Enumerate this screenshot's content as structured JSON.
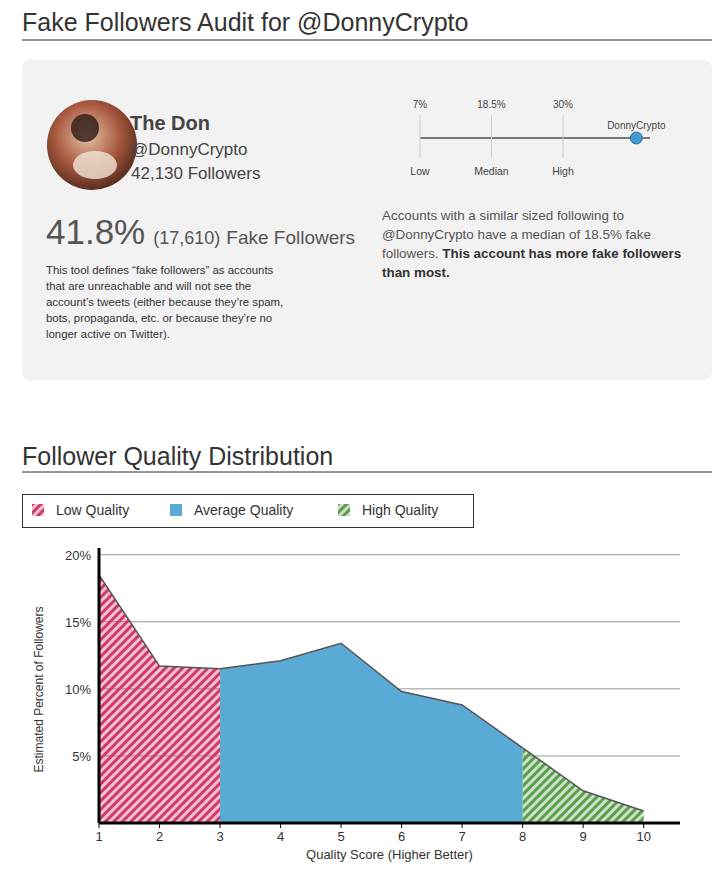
{
  "header": {
    "title": "Fake Followers Audit for @DonnyCrypto"
  },
  "profile": {
    "name": "The Don",
    "handle": "@DonnyCrypto",
    "followers": "42,130 Followers"
  },
  "fake": {
    "percent": "41.8%",
    "count": "(17,610)",
    "label": "Fake Followers",
    "definition": "This tool defines “fake followers” as accounts that are unreachable and will not see the account’s tweets (either because they’re spam, bots, propaganda, etc. or because they’re no longer active on Twitter)."
  },
  "gauge": {
    "range": [
      7,
      44
    ],
    "ticks": [
      {
        "value": 7,
        "label": "7%",
        "caption": "Low"
      },
      {
        "value": 18.5,
        "label": "18.5%",
        "caption": "Median"
      },
      {
        "value": 30,
        "label": "30%",
        "caption": "High"
      }
    ],
    "marker": {
      "label": "DonnyCrypto",
      "value": 41.8
    }
  },
  "comparison": {
    "text": "Accounts with a similar sized following to @DonnyCrypto have a median of 18.5% fake followers.",
    "emphasis": "This account has more fake followers than most."
  },
  "chart_data": {
    "type": "area",
    "title": "Follower Quality Distribution",
    "x_label": "Quality Score (Higher Better)",
    "y_label": "Estimated Percent of Followers",
    "x": [
      1,
      2,
      3,
      4,
      5,
      6,
      7,
      8,
      9,
      10
    ],
    "series": [
      {
        "name": "Low Quality",
        "color": "#d1386c",
        "values": [
          18.5,
          11.7,
          11.5,
          null,
          null,
          null,
          null,
          null,
          null,
          null
        ]
      },
      {
        "name": "Average Quality",
        "color": "#5aaad6",
        "values": [
          null,
          null,
          11.5,
          12.1,
          13.4,
          9.8,
          8.8,
          5.6,
          null,
          null
        ]
      },
      {
        "name": "High Quality",
        "color": "#5a9e4b",
        "values": [
          null,
          null,
          null,
          null,
          null,
          null,
          null,
          5.6,
          2.4,
          0.9
        ]
      }
    ],
    "xlim": [
      1,
      10.6
    ],
    "xticks": [
      1,
      2,
      3,
      4,
      5,
      6,
      7,
      8,
      9,
      10
    ],
    "ylim": [
      0,
      20.5
    ],
    "yticks": [
      {
        "value": 5,
        "label": "5%"
      },
      {
        "value": 10,
        "label": "10%"
      },
      {
        "value": 15,
        "label": "15%"
      },
      {
        "value": 20,
        "label": "20%"
      }
    ],
    "grid": true,
    "legend": "top"
  }
}
